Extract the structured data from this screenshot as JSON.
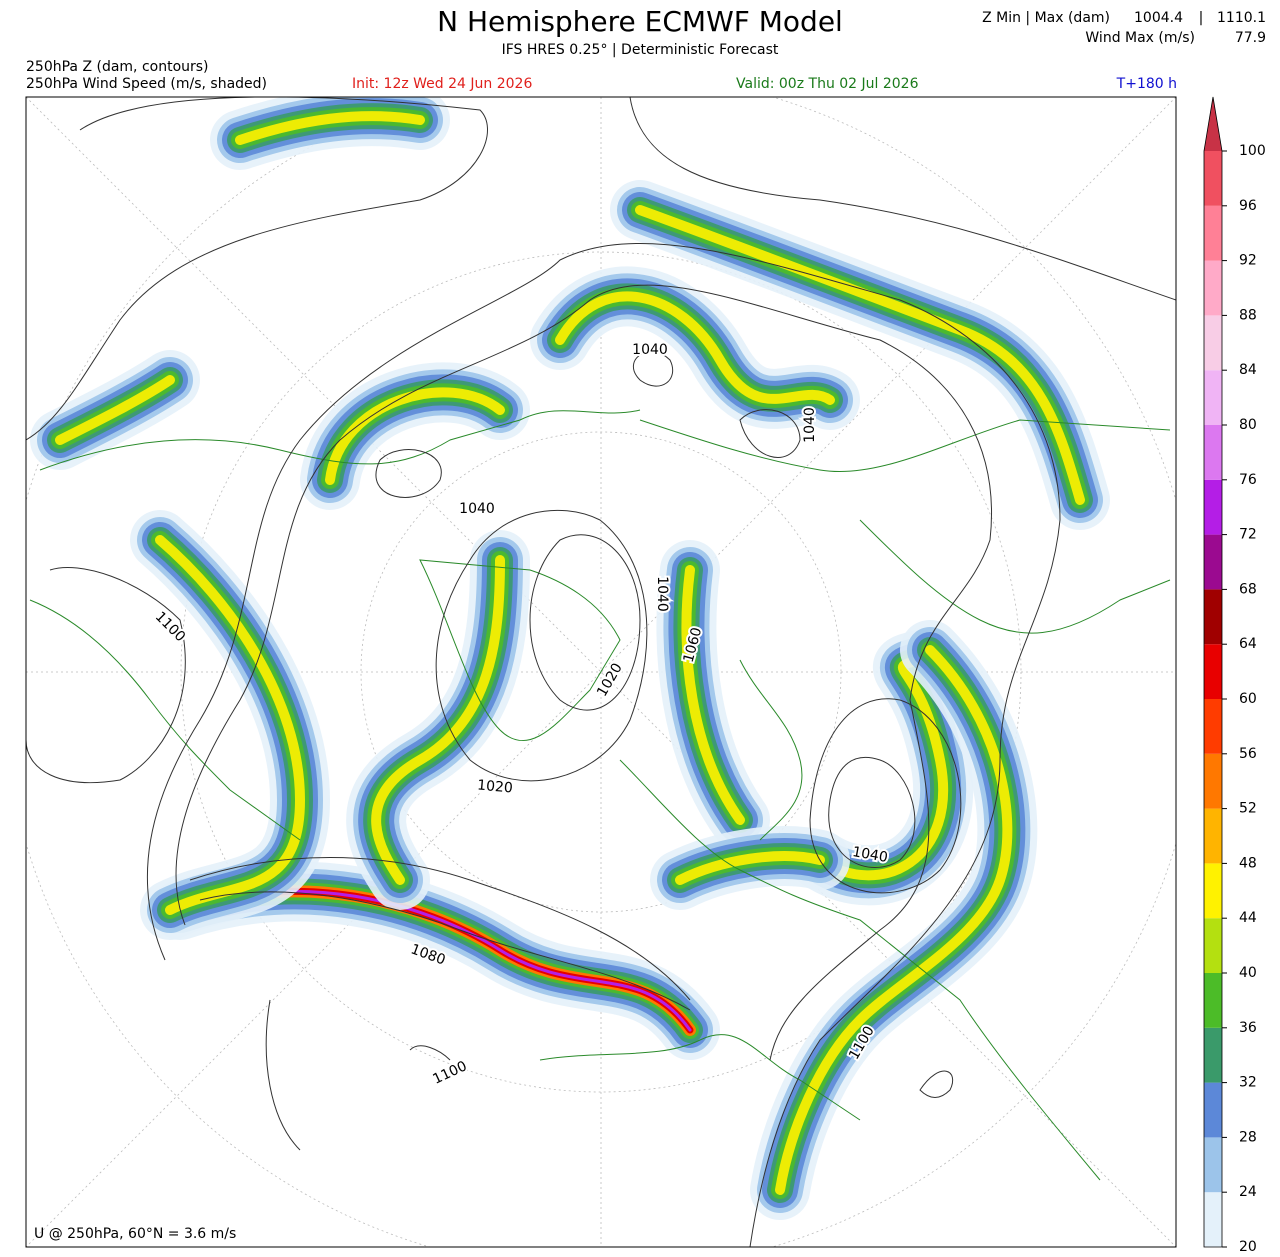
{
  "header": {
    "title": "N Hemisphere ECMWF Model",
    "subtitle": "IFS HRES 0.25° | Deterministic Forecast",
    "z_label": "Z Min | Max (dam)",
    "z_min": 1004.4,
    "separator": "|",
    "z_max": 1110.1,
    "wind_label": "Wind Max (m/s)",
    "wind_max": 77.9,
    "field_z": "250hPa Z (dam, contours)",
    "field_wind": "250hPa Wind Speed (m/s, shaded)",
    "init": "Init: 12z Wed 24 Jun 2026",
    "valid": "Valid: 00z Thu 02 Jul 2026",
    "lead": "T+180 h"
  },
  "map": {
    "contour_labels": [
      "1040",
      "1040",
      "1040",
      "1100",
      "1040",
      "1060",
      "1020",
      "1020",
      "1040",
      "1080",
      "1100",
      "1100"
    ],
    "footer": "U @ 250hPa, 60°N =  3.6 m/s"
  },
  "colorbar": {
    "ticks": [
      20,
      24,
      28,
      32,
      36,
      40,
      44,
      48,
      52,
      56,
      60,
      64,
      68,
      72,
      76,
      80,
      84,
      88,
      92,
      96,
      100
    ],
    "colors": [
      "#e4f1fa",
      "#9cc4ea",
      "#5c88d8",
      "#3a9a6a",
      "#4cbc28",
      "#b4e010",
      "#fff200",
      "#ffb400",
      "#ff7800",
      "#ff3c00",
      "#e80000",
      "#a00000",
      "#9b0a90",
      "#b41ee6",
      "#dc78f0",
      "#f0b4f5",
      "#f8cde6",
      "#ffaac8",
      "#ff8096",
      "#f05060"
    ],
    "extend_color": "#c83246"
  }
}
